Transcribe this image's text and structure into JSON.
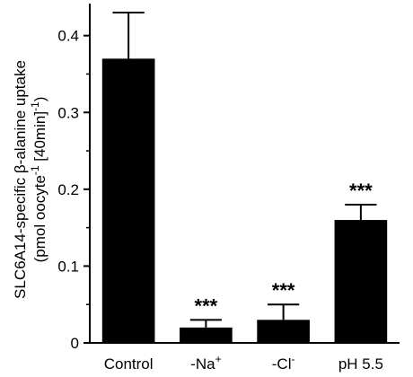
{
  "chart_data": {
    "type": "bar",
    "categories": [
      "Control",
      "-Na+",
      "-Cl-",
      "pH 5.5"
    ],
    "category_labels": [
      {
        "main": "Control",
        "sup": ""
      },
      {
        "main": "-Na",
        "sup": "+"
      },
      {
        "main": "-Cl",
        "sup": "-"
      },
      {
        "main": "pH 5.5",
        "sup": ""
      }
    ],
    "values": [
      0.37,
      0.02,
      0.03,
      0.16
    ],
    "errors": [
      0.06,
      0.01,
      0.02,
      0.02
    ],
    "significance": [
      "",
      "***",
      "***",
      "***"
    ],
    "title": "",
    "xlabel": "",
    "ylabel": {
      "line1": "SLC6A14-specific β-alanine uptake",
      "line2_a": "(pmol oocyte",
      "line2_sup1": "-1",
      "line2_b": " [40min]",
      "line2_sup2": "-1",
      "line2_c": ")"
    },
    "ylim": [
      0,
      0.43
    ],
    "yticks": [
      0,
      0.1,
      0.2,
      0.3,
      0.4
    ],
    "ytick_labels": [
      "0",
      "0.1",
      "0.2",
      "0.3",
      "0.4"
    ],
    "bar_color": "#000000",
    "grid": false
  }
}
